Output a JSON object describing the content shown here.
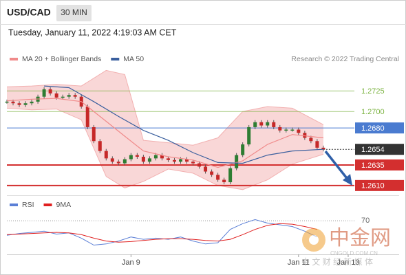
{
  "header": {
    "symbol": "USD/CAD",
    "timeframe": "30 MIN",
    "datetime": "Tuesday, January 11, 2022 4:19:03 AM CET",
    "source": "Research © 2022 Trading Central"
  },
  "watermark": {
    "name": "中金网",
    "site": "CNGOLD.COM.CN",
    "slogan": "中 文 财 经 新 媒 体"
  },
  "chart_data": [
    {
      "type": "candlestick",
      "ylim": [
        1.2599,
        1.2752
      ],
      "xlim": [
        0,
        56
      ],
      "legend": "top-left",
      "price": {
        "x": [
          0,
          1,
          2,
          3,
          4,
          5,
          6,
          7,
          8,
          9,
          10,
          11,
          12,
          13,
          14,
          15,
          16,
          17,
          18,
          19,
          20,
          21,
          22,
          23,
          24,
          25,
          26,
          27,
          28,
          29,
          30,
          31,
          32,
          33,
          34,
          35,
          36,
          37,
          38,
          39,
          40,
          41,
          42,
          43,
          44,
          45,
          46,
          47,
          48,
          49,
          50,
          51
        ],
        "values": [
          1.2712,
          1.271,
          1.2708,
          1.271,
          1.2712,
          1.2718,
          1.2727,
          1.2722,
          1.2717,
          1.2718,
          1.272,
          1.2718,
          1.2706,
          1.2681,
          1.2664,
          1.2652,
          1.2643,
          1.2639,
          1.2637,
          1.2642,
          1.2647,
          1.2645,
          1.2639,
          1.2643,
          1.2647,
          1.2643,
          1.2641,
          1.2639,
          1.2642,
          1.2639,
          1.2637,
          1.2633,
          1.2627,
          1.2623,
          1.2617,
          1.2614,
          1.2631,
          1.2647,
          1.266,
          1.2681,
          1.2687,
          1.2683,
          1.2687,
          1.2681,
          1.2677,
          1.2678,
          1.2678,
          1.2674,
          1.2668,
          1.2664,
          1.2656,
          1.2654
        ],
        "up_color": "#2e7d32",
        "down_color": "#c62828"
      },
      "series": [
        {
          "name": "MA 20 + Bollinger Bands",
          "color": "#f08a8a",
          "x": [
            0,
            4,
            8,
            12,
            16,
            19,
            22,
            26,
            30,
            34,
            38,
            42,
            46,
            51
          ],
          "values": [
            1.2713,
            1.2715,
            1.2716,
            1.2712,
            1.2688,
            1.267,
            1.2652,
            1.2645,
            1.2641,
            1.2632,
            1.264,
            1.266,
            1.2672,
            1.2668
          ],
          "upper": [
            1.273,
            1.2731,
            1.2733,
            1.2731,
            1.275,
            1.2745,
            1.2665,
            1.2662,
            1.2659,
            1.2668,
            1.27,
            1.2706,
            1.2704,
            1.2684
          ],
          "lower": [
            1.2704,
            1.2702,
            1.2703,
            1.269,
            1.2621,
            1.2607,
            1.2615,
            1.263,
            1.2625,
            1.261,
            1.2605,
            1.2617,
            1.2636,
            1.2648
          ]
        },
        {
          "name": "MA 50",
          "color": "#3a5f9e",
          "x": [
            6,
            10,
            14,
            18,
            22,
            26,
            30,
            34,
            38,
            42,
            46,
            51
          ],
          "values": [
            1.2731,
            1.2729,
            1.2712,
            1.2694,
            1.2677,
            1.2665,
            1.265,
            1.2638,
            1.2637,
            1.2647,
            1.2652,
            1.2654
          ]
        }
      ],
      "levels": {
        "values": [
          1.2725,
          1.27,
          1.268,
          1.2654,
          1.2635,
          1.261
        ],
        "value_labels": [
          "1.2725",
          "1.2700",
          "1.2680",
          "1.2654",
          "1.2635",
          "1.2610"
        ],
        "colors": [
          "#7cb342",
          "#7cb342",
          "#4a7bd0",
          "#333333",
          "#d32f2f",
          "#d32f2f"
        ],
        "boxed": [
          false,
          false,
          true,
          true,
          true,
          true
        ]
      }
    },
    {
      "type": "line",
      "ylim": [
        12,
        95
      ],
      "xlim": [
        0,
        56
      ],
      "yticks": [
        70
      ],
      "legend": "top-left",
      "xticks": [
        {
          "value": 20,
          "label": "Jan 9"
        },
        {
          "value": 47,
          "label": "Jan 11"
        },
        {
          "value": 55,
          "label": "Jan 13"
        }
      ],
      "series": [
        {
          "name": "RSI",
          "color": "#5b7fd6",
          "x": [
            0,
            2,
            4,
            6,
            8,
            10,
            12,
            14,
            16,
            18,
            20,
            22,
            24,
            26,
            28,
            30,
            32,
            34,
            36,
            38,
            40,
            42,
            44,
            46,
            48,
            50
          ],
          "values": [
            45,
            48,
            50,
            52,
            47,
            49,
            40,
            28,
            30,
            35,
            42,
            38,
            40,
            38,
            42,
            35,
            30,
            32,
            55,
            65,
            72,
            66,
            63,
            60,
            52,
            42
          ]
        },
        {
          "name": "9MA",
          "color": "#e02020",
          "x": [
            0,
            2,
            4,
            6,
            8,
            10,
            12,
            14,
            16,
            18,
            20,
            22,
            24,
            26,
            28,
            30,
            32,
            34,
            36,
            38,
            40,
            42,
            44,
            46,
            48,
            50
          ],
          "values": [
            46,
            47,
            48,
            49,
            50,
            49,
            46,
            40,
            35,
            33,
            34,
            36,
            38,
            39,
            39,
            38,
            36,
            35,
            38,
            46,
            55,
            62,
            65,
            64,
            60,
            55
          ]
        }
      ]
    }
  ]
}
